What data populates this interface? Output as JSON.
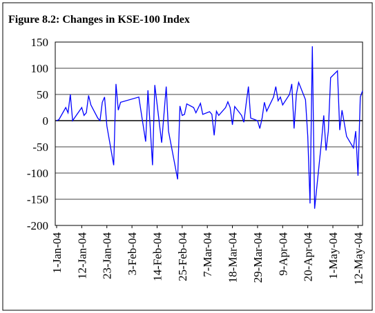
{
  "chart_data": {
    "type": "line",
    "title": "Figure 8.2: Changes in KSE-100 Index",
    "x": [
      "2004-01-01",
      "2004-01-02",
      "2004-01-05",
      "2004-01-06",
      "2004-01-07",
      "2004-01-08",
      "2004-01-12",
      "2004-01-13",
      "2004-01-14",
      "2004-01-15",
      "2004-01-16",
      "2004-01-19",
      "2004-01-20",
      "2004-01-21",
      "2004-01-22",
      "2004-01-23",
      "2004-01-26",
      "2004-01-27",
      "2004-01-28",
      "2004-01-29",
      "2004-02-06",
      "2004-02-09",
      "2004-02-10",
      "2004-02-12",
      "2004-02-13",
      "2004-02-16",
      "2004-02-18",
      "2004-02-19",
      "2004-02-23",
      "2004-02-24",
      "2004-02-25",
      "2004-02-26",
      "2004-02-27",
      "2004-03-01",
      "2004-03-02",
      "2004-03-04",
      "2004-03-05",
      "2004-03-08",
      "2004-03-09",
      "2004-03-10",
      "2004-03-11",
      "2004-03-12",
      "2004-03-15",
      "2004-03-16",
      "2004-03-17",
      "2004-03-18",
      "2004-03-19",
      "2004-03-22",
      "2004-03-23",
      "2004-03-24",
      "2004-03-25",
      "2004-03-26",
      "2004-03-29",
      "2004-03-30",
      "2004-03-31",
      "2004-04-01",
      "2004-04-02",
      "2004-04-05",
      "2004-04-06",
      "2004-04-07",
      "2004-04-08",
      "2004-04-09",
      "2004-04-12",
      "2004-04-13",
      "2004-04-14",
      "2004-04-15",
      "2004-04-16",
      "2004-04-19",
      "2004-04-20",
      "2004-04-21",
      "2004-04-22",
      "2004-04-23",
      "2004-04-26",
      "2004-04-27",
      "2004-04-28",
      "2004-04-29",
      "2004-04-30",
      "2004-05-03",
      "2004-05-04",
      "2004-05-05",
      "2004-05-06",
      "2004-05-07",
      "2004-05-10",
      "2004-05-11",
      "2004-05-12",
      "2004-05-13",
      "2004-05-14"
    ],
    "series": [
      {
        "color": "#0000ff",
        "values": [
          0,
          2,
          25,
          15,
          50,
          0,
          25,
          10,
          15,
          48,
          30,
          5,
          0,
          35,
          45,
          -10,
          -85,
          70,
          20,
          35,
          45,
          -40,
          58,
          -85,
          68,
          -42,
          65,
          -20,
          -112,
          28,
          10,
          12,
          32,
          25,
          15,
          33,
          12,
          17,
          12,
          -28,
          18,
          10,
          25,
          36,
          25,
          -8,
          27,
          10,
          -3,
          32,
          65,
          5,
          0,
          -15,
          5,
          35,
          18,
          45,
          65,
          38,
          45,
          30,
          50,
          70,
          -15,
          50,
          73,
          40,
          -30,
          -158,
          142,
          -168,
          -40,
          10,
          -57,
          -20,
          82,
          95,
          -18,
          20,
          -5,
          -30,
          -52,
          -20,
          -105,
          45,
          57
        ]
      }
    ],
    "xlim": [
      "2004-01-01",
      "2004-05-14"
    ],
    "xticks": [
      {
        "value": "2004-01-01",
        "label": "1-Jan-04"
      },
      {
        "value": "2004-01-12",
        "label": "12-Jan-04"
      },
      {
        "value": "2004-01-23",
        "label": "23-Jan-04"
      },
      {
        "value": "2004-02-03",
        "label": "3-Feb-04"
      },
      {
        "value": "2004-02-14",
        "label": "14-Feb-04"
      },
      {
        "value": "2004-02-25",
        "label": "25-Feb-04"
      },
      {
        "value": "2004-03-07",
        "label": "7-Mar-04"
      },
      {
        "value": "2004-03-18",
        "label": "18-Mar-04"
      },
      {
        "value": "2004-03-29",
        "label": "29-Mar-04"
      },
      {
        "value": "2004-04-09",
        "label": "9-Apr-04"
      },
      {
        "value": "2004-04-20",
        "label": "20-Apr-04"
      },
      {
        "value": "2004-05-01",
        "label": "1-May-04"
      },
      {
        "value": "2004-05-12",
        "label": "12-May-04"
      }
    ],
    "ylim": [
      -200,
      150
    ],
    "yticks": [
      -200,
      -150,
      -100,
      -50,
      0,
      50,
      100,
      150
    ],
    "grid": true
  }
}
